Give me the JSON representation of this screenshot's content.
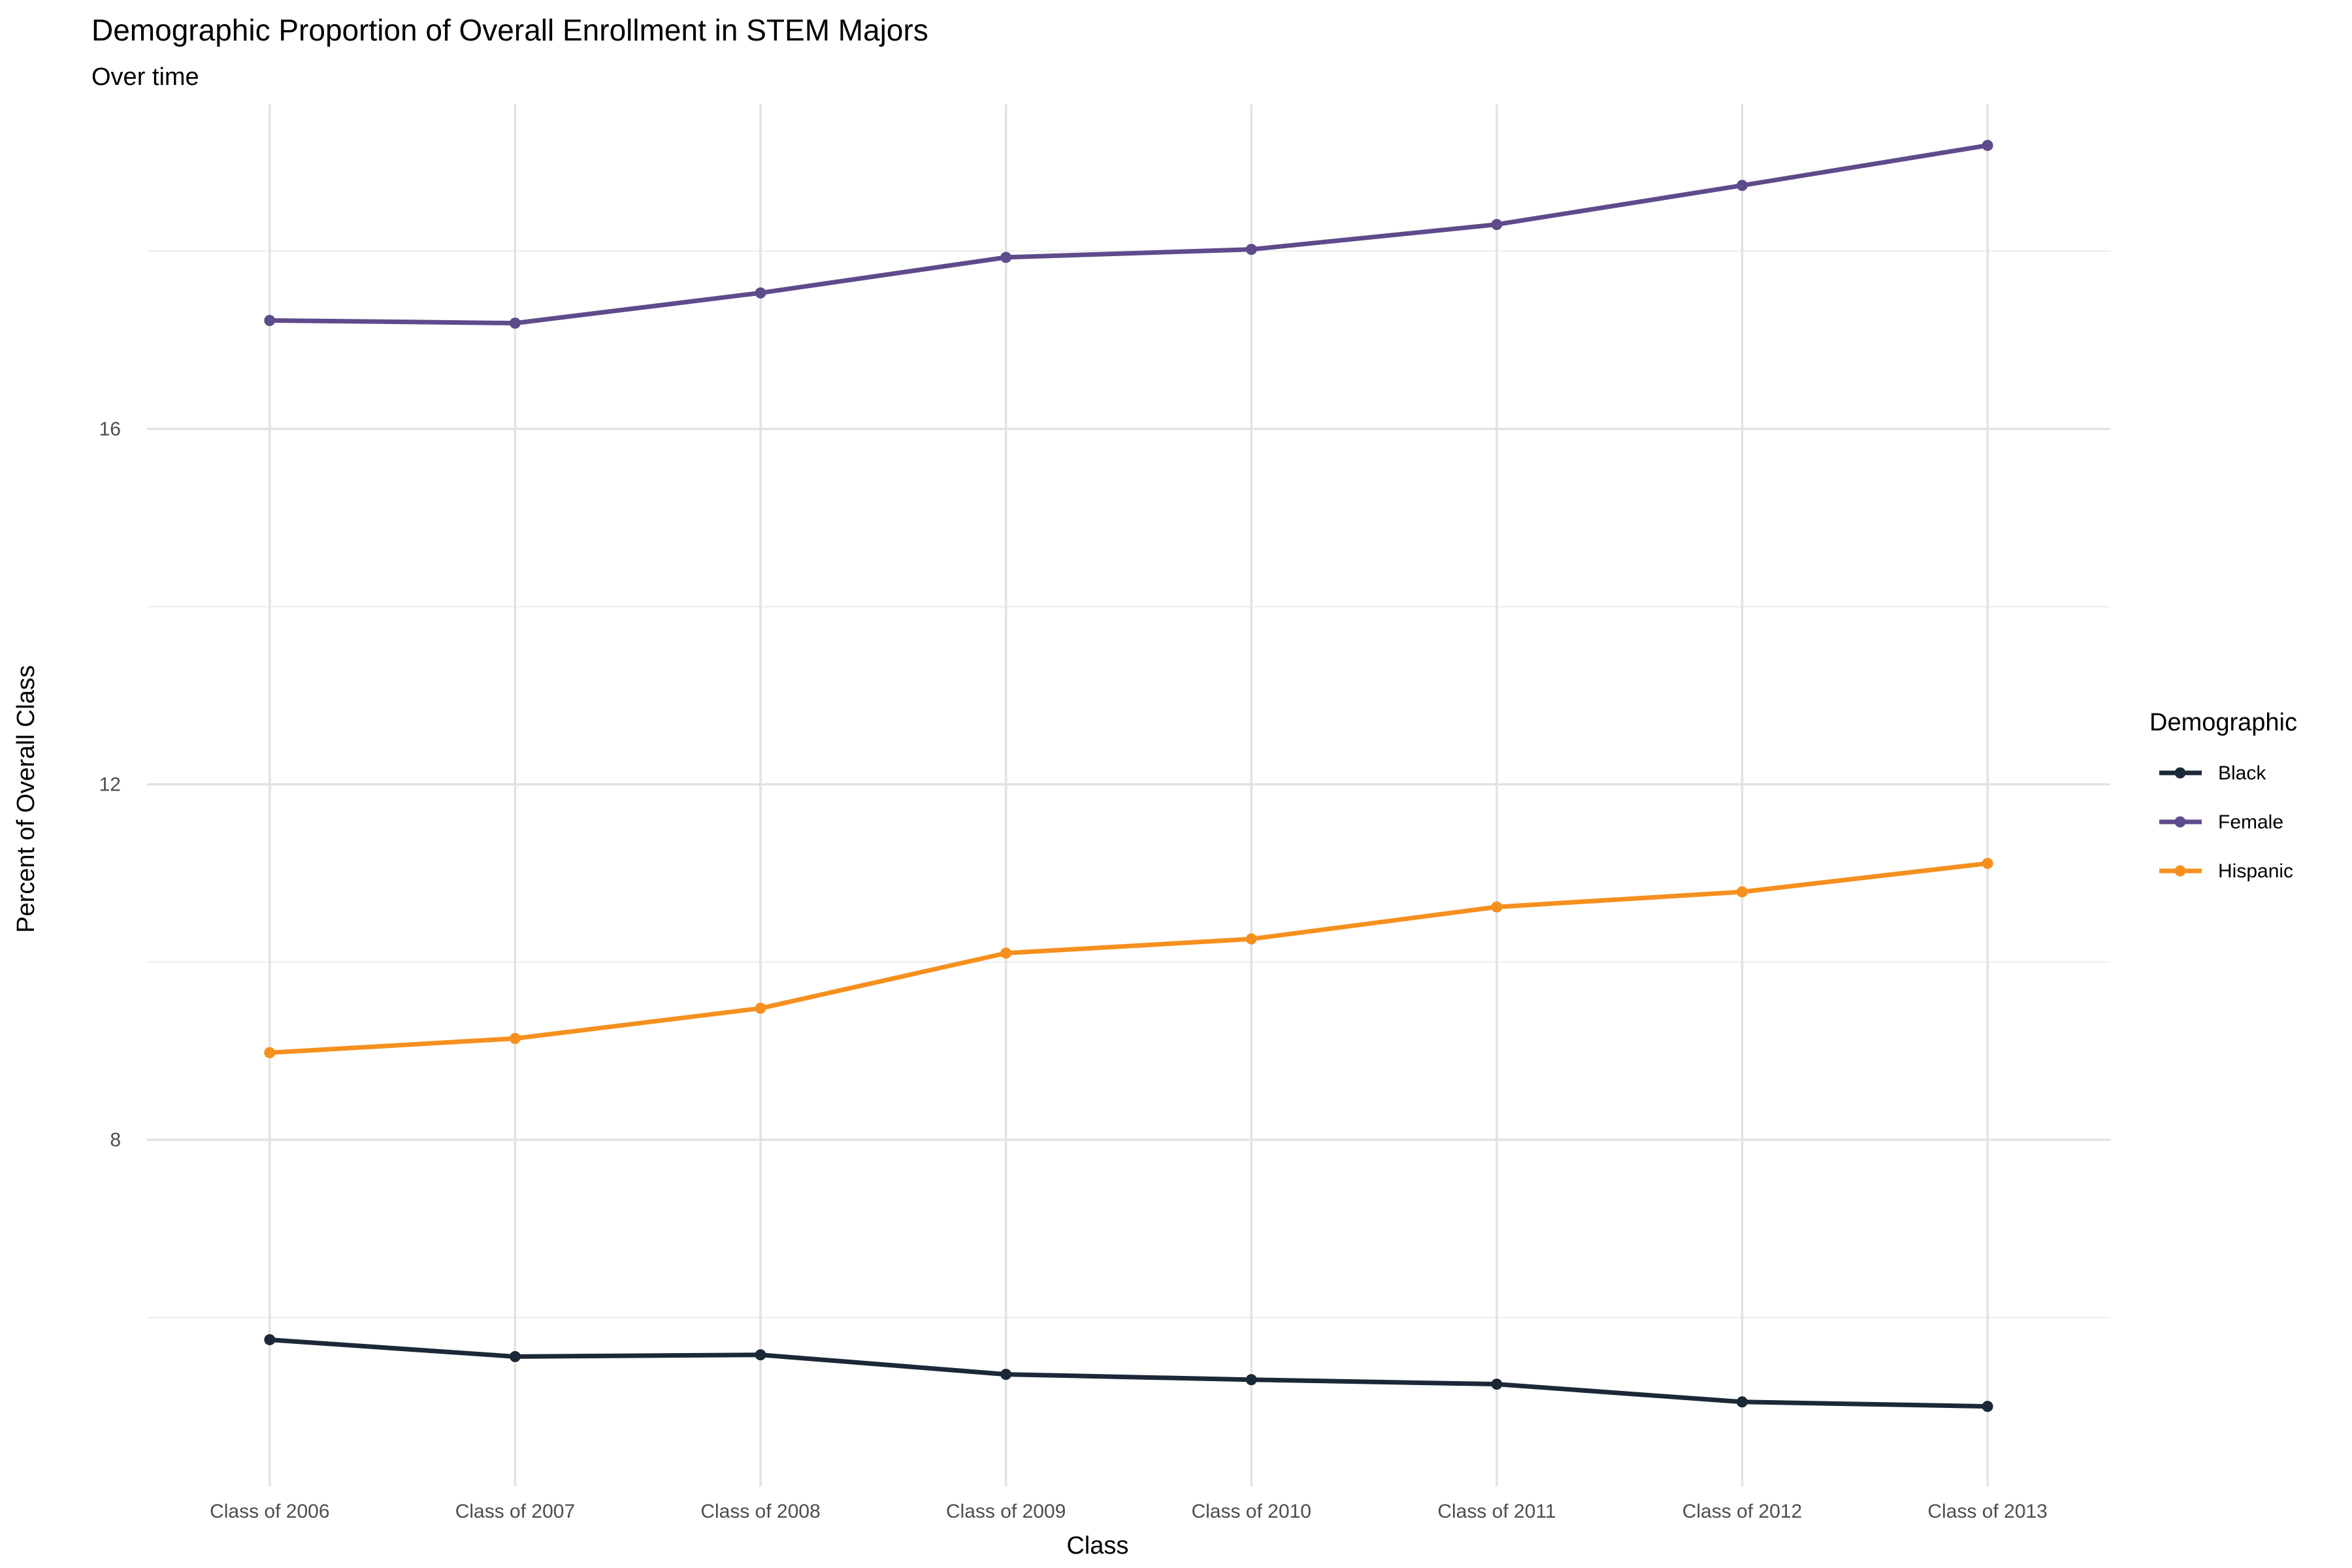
{
  "chart_data": {
    "type": "line",
    "title": "Demographic Proportion of Overall Enrollment in STEM Majors",
    "subtitle": "Over time",
    "xlabel": "Class",
    "ylabel": "Percent of Overall Class",
    "categories": [
      "Class of 2006",
      "Class of 2007",
      "Class of 2008",
      "Class of 2009",
      "Class of 2010",
      "Class of 2011",
      "Class of 2012",
      "Class of 2013"
    ],
    "ylim": [
      4.1,
      19.65
    ],
    "yticks": [
      8,
      12,
      16
    ],
    "grid": true,
    "legend": {
      "title": "Demographic",
      "position": "right"
    },
    "series": [
      {
        "name": "Black",
        "color": "#1b2838",
        "values": [
          5.75,
          5.56,
          5.58,
          5.36,
          5.3,
          5.25,
          5.05,
          5.0
        ]
      },
      {
        "name": "Female",
        "color": "#5e4b8b",
        "values": [
          17.22,
          17.19,
          17.53,
          17.93,
          18.02,
          18.3,
          18.74,
          19.19
        ]
      },
      {
        "name": "Hispanic",
        "color": "#f5901e",
        "values": [
          8.98,
          9.14,
          9.48,
          10.1,
          10.26,
          10.62,
          10.79,
          11.11
        ]
      }
    ]
  }
}
